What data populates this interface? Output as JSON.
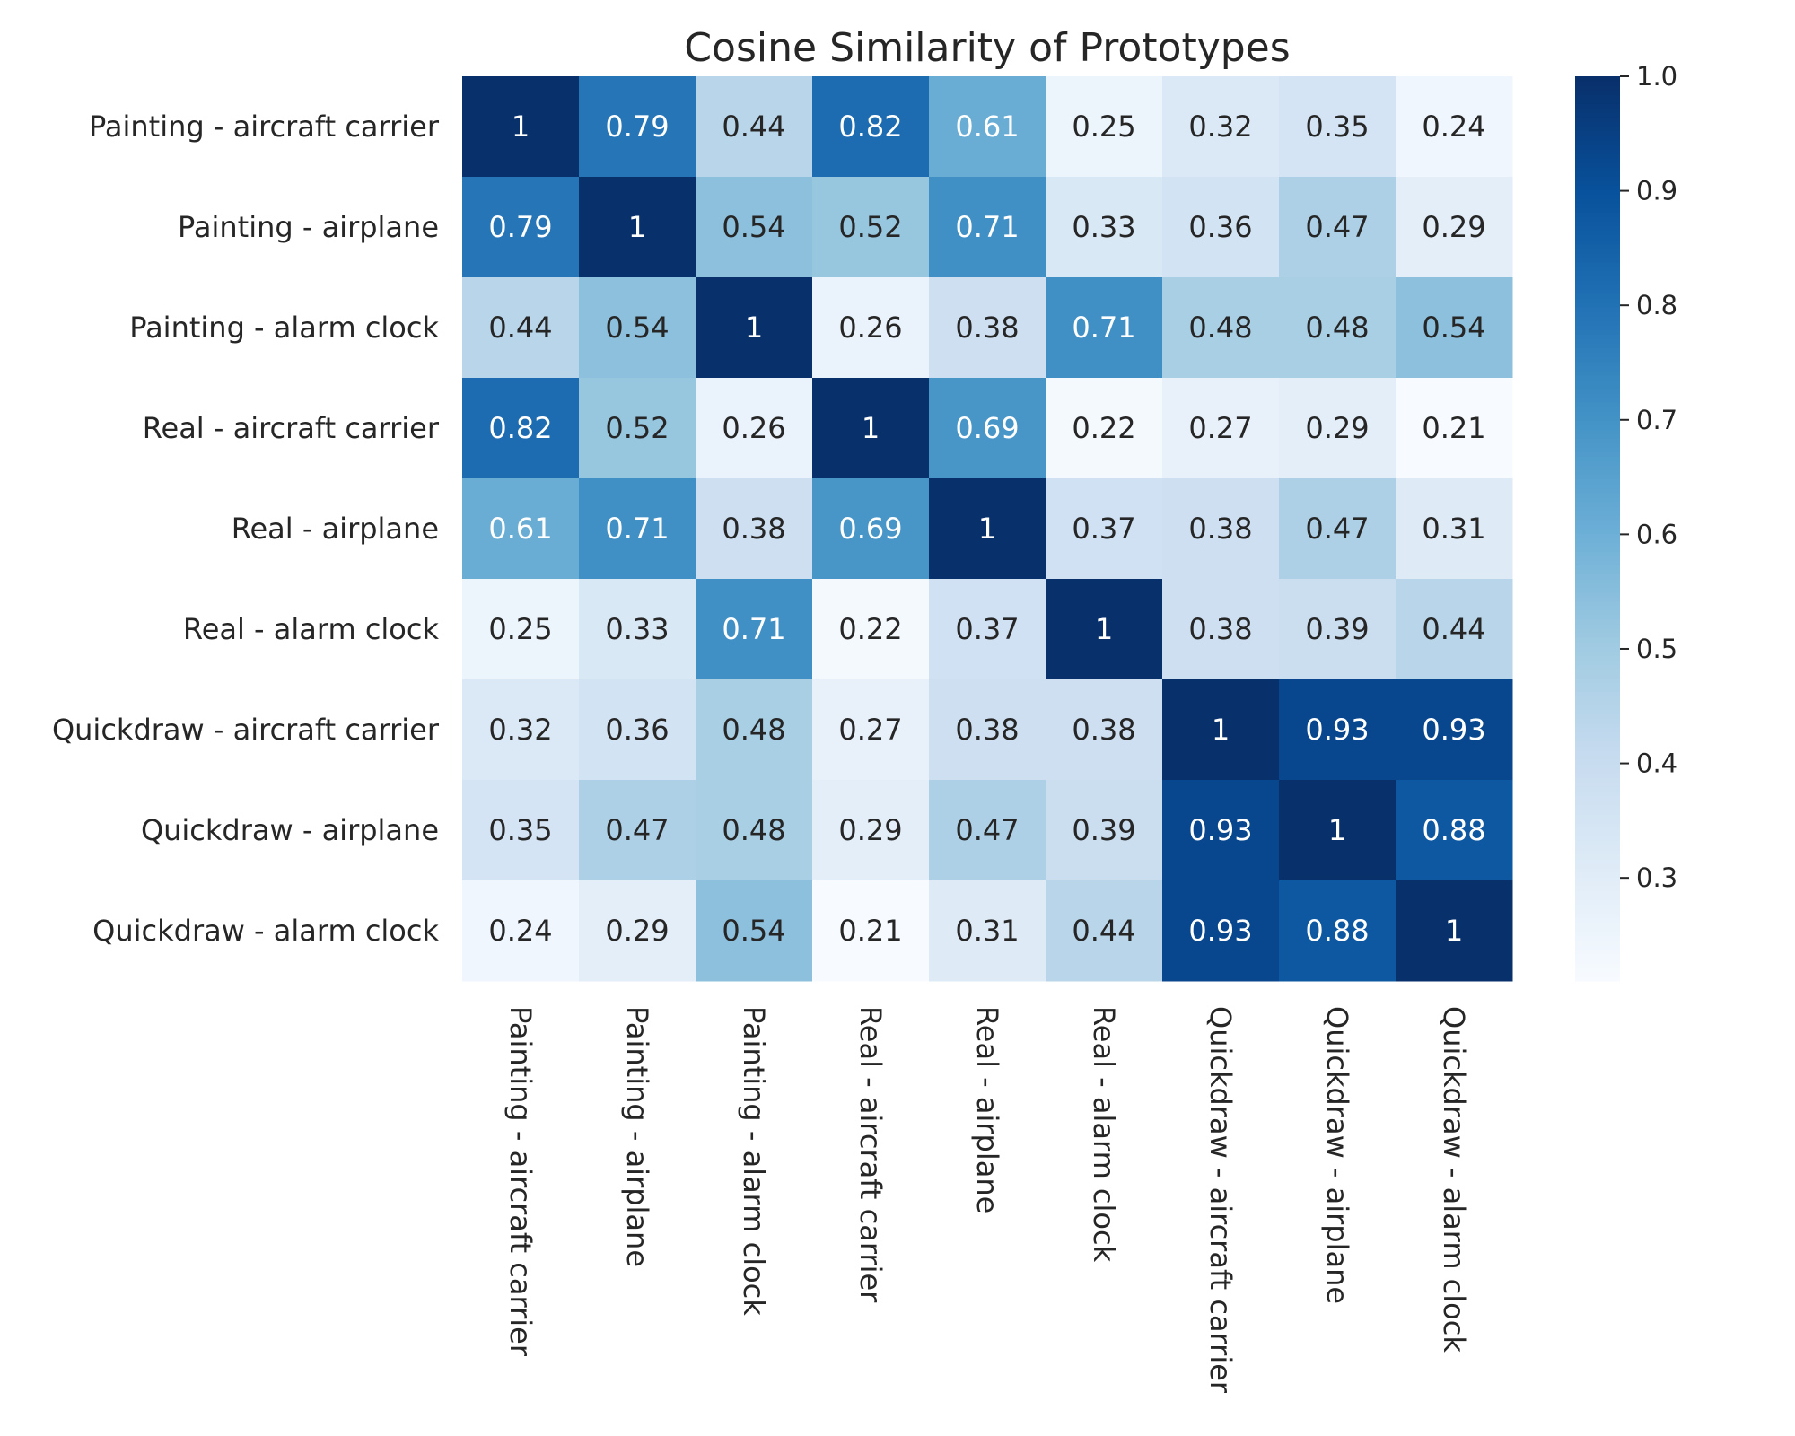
{
  "chart_data": {
    "type": "heatmap",
    "title": "Cosine Similarity of Prototypes",
    "xlabel": "",
    "ylabel": "",
    "row_labels": [
      "Painting - aircraft carrier",
      "Painting - airplane",
      "Painting - alarm clock",
      "Real - aircraft carrier",
      "Real - airplane",
      "Real - alarm clock",
      "Quickdraw - aircraft carrier",
      "Quickdraw - airplane",
      "Quickdraw - alarm clock"
    ],
    "col_labels": [
      "Painting - aircraft carrier",
      "Painting - airplane",
      "Painting - alarm clock",
      "Real - aircraft carrier",
      "Real - airplane",
      "Real - alarm clock",
      "Quickdraw - aircraft carrier",
      "Quickdraw - airplane",
      "Quickdraw - alarm clock"
    ],
    "values": [
      [
        1,
        0.79,
        0.44,
        0.82,
        0.61,
        0.25,
        0.32,
        0.35,
        0.24
      ],
      [
        0.79,
        1,
        0.54,
        0.52,
        0.71,
        0.33,
        0.36,
        0.47,
        0.29
      ],
      [
        0.44,
        0.54,
        1,
        0.26,
        0.38,
        0.71,
        0.48,
        0.48,
        0.54
      ],
      [
        0.82,
        0.52,
        0.26,
        1,
        0.69,
        0.22,
        0.27,
        0.29,
        0.21
      ],
      [
        0.61,
        0.71,
        0.38,
        0.69,
        1,
        0.37,
        0.38,
        0.47,
        0.31
      ],
      [
        0.25,
        0.33,
        0.71,
        0.22,
        0.37,
        1,
        0.38,
        0.39,
        0.44
      ],
      [
        0.32,
        0.36,
        0.48,
        0.27,
        0.38,
        0.38,
        1,
        0.93,
        0.93
      ],
      [
        0.35,
        0.47,
        0.48,
        0.29,
        0.47,
        0.39,
        0.93,
        1,
        0.88
      ],
      [
        0.24,
        0.29,
        0.54,
        0.21,
        0.31,
        0.44,
        0.93,
        0.88,
        1
      ]
    ],
    "colormap": "Blues",
    "colorbar": {
      "vmin": 0.21,
      "vmax": 1.0,
      "ticks": [
        "0.3",
        "0.4",
        "0.5",
        "0.6",
        "0.7",
        "0.8",
        "0.9",
        "1.0"
      ]
    },
    "annotations": true,
    "grid": false
  }
}
